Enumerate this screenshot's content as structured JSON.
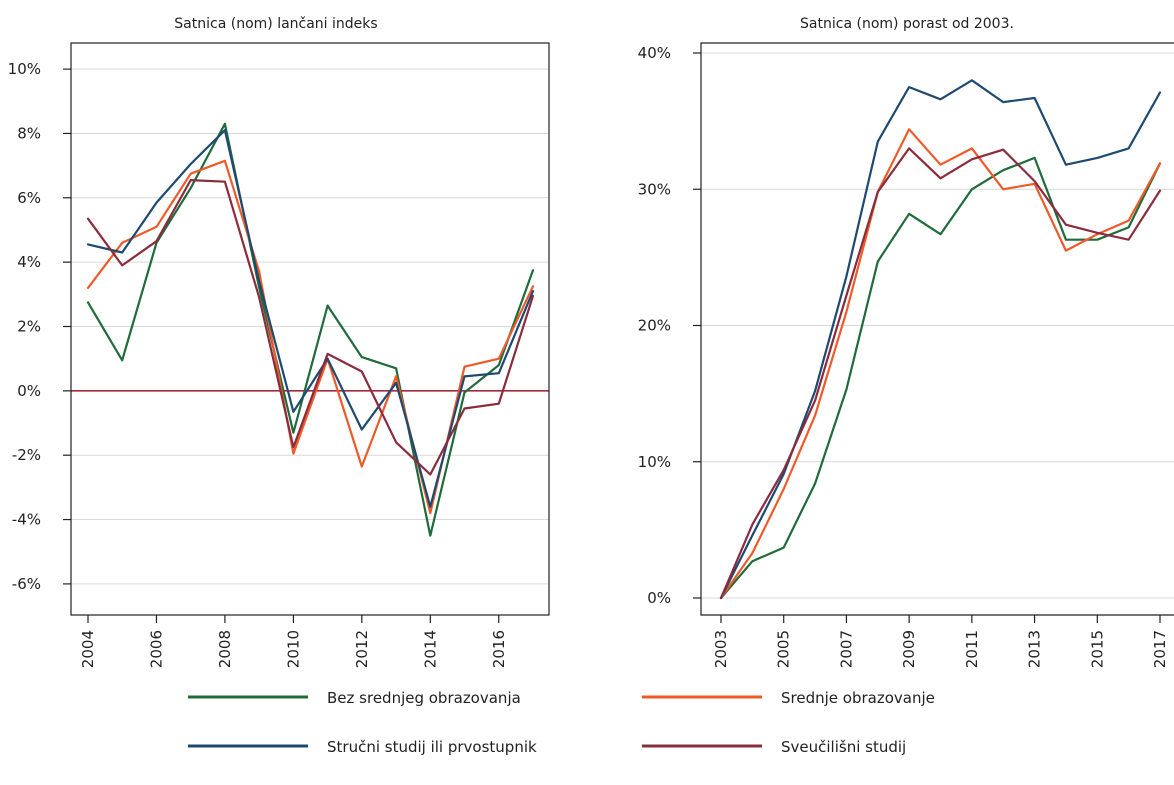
{
  "colors": {
    "green": "#1f6b3a",
    "orange": "#ef5a28",
    "blue": "#1e4a72",
    "maroon": "#8b2c3c",
    "zero_line": "#a52a3a"
  },
  "legend": [
    {
      "label": "Bez srednjeg obrazovanja",
      "color": "#1f6b3a"
    },
    {
      "label": "Srednje obrazovanje",
      "color": "#ef5a28"
    },
    {
      "label": "Stručni studij ili prvostupnik",
      "color": "#1e4a72"
    },
    {
      "label": "Sveučilišni studij",
      "color": "#8b2c3c"
    }
  ],
  "chart_data": [
    {
      "type": "line",
      "title": "Satnica (nom) lančani indeks",
      "xlabel": "",
      "ylabel": "",
      "x": [
        2004,
        2005,
        2006,
        2007,
        2008,
        2009,
        2010,
        2011,
        2012,
        2013,
        2014,
        2015,
        2016,
        2017
      ],
      "xticks": [
        "2004",
        "2006",
        "2008",
        "2010",
        "2012",
        "2014",
        "2016"
      ],
      "yticks": [
        "10%",
        "8%",
        "6%",
        "4%",
        "2%",
        "0%",
        "-2%",
        "-4%",
        "-6%"
      ],
      "ylim": [
        -6.5,
        10.5
      ],
      "reference_line": 0,
      "grid": true,
      "series": [
        {
          "name": "Bez srednjeg obrazovanja",
          "color": "#1f6b3a",
          "values": [
            2.75,
            0.95,
            4.6,
            6.3,
            8.3,
            3.2,
            -1.3,
            2.65,
            1.05,
            0.7,
            -4.5,
            -0.05,
            0.8,
            3.75
          ]
        },
        {
          "name": "Srednje obrazovanje",
          "color": "#ef5a28",
          "values": [
            3.2,
            4.6,
            5.1,
            6.75,
            7.15,
            3.7,
            -1.95,
            1.0,
            -2.35,
            0.45,
            -3.8,
            0.75,
            1.0,
            3.25
          ]
        },
        {
          "name": "Stručni studij ili prvostupnik",
          "color": "#1e4a72",
          "values": [
            4.55,
            4.3,
            5.85,
            7.05,
            8.1,
            3.4,
            -0.65,
            1.0,
            -1.2,
            0.25,
            -3.6,
            0.45,
            0.55,
            3.1
          ]
        },
        {
          "name": "Sveučilišni studij",
          "color": "#8b2c3c",
          "values": [
            5.35,
            3.9,
            4.65,
            6.55,
            6.5,
            2.9,
            -1.75,
            1.15,
            0.6,
            -1.6,
            -2.6,
            -0.55,
            -0.4,
            2.95
          ]
        }
      ]
    },
    {
      "type": "line",
      "title": "Satnica (nom) porast od 2003.",
      "xlabel": "",
      "ylabel": "",
      "x": [
        2003,
        2004,
        2005,
        2006,
        2007,
        2008,
        2009,
        2010,
        2011,
        2012,
        2013,
        2014,
        2015,
        2016,
        2017
      ],
      "xticks": [
        "2003",
        "2005",
        "2007",
        "2009",
        "2011",
        "2013",
        "2015",
        "2017"
      ],
      "yticks": [
        "40%",
        "30%",
        "20%",
        "10%",
        "0%"
      ],
      "ylim": [
        0,
        40
      ],
      "grid": true,
      "series": [
        {
          "name": "Bez srednjeg obrazovanja",
          "color": "#1f6b3a",
          "values": [
            0,
            2.7,
            3.7,
            8.4,
            15.3,
            24.7,
            28.2,
            26.7,
            30.0,
            31.4,
            32.3,
            26.3,
            26.3,
            27.2,
            31.9
          ]
        },
        {
          "name": "Srednje obrazovanje",
          "color": "#ef5a28",
          "values": [
            0,
            3.3,
            8.0,
            13.4,
            21.0,
            29.8,
            34.4,
            31.8,
            33.0,
            30.0,
            30.4,
            25.5,
            26.7,
            27.7,
            31.9
          ]
        },
        {
          "name": "Stručni studij ili prvostupnik",
          "color": "#1e4a72",
          "values": [
            0,
            4.6,
            9.1,
            15.2,
            23.6,
            33.5,
            37.5,
            36.6,
            38.0,
            36.4,
            36.7,
            31.8,
            32.3,
            33.0,
            37.1
          ]
        },
        {
          "name": "Sveučilišni studij",
          "color": "#8b2c3c",
          "values": [
            0,
            5.4,
            9.4,
            14.5,
            22.2,
            29.8,
            33.0,
            30.8,
            32.2,
            32.9,
            30.6,
            27.4,
            26.8,
            26.3,
            29.9
          ]
        }
      ]
    }
  ]
}
